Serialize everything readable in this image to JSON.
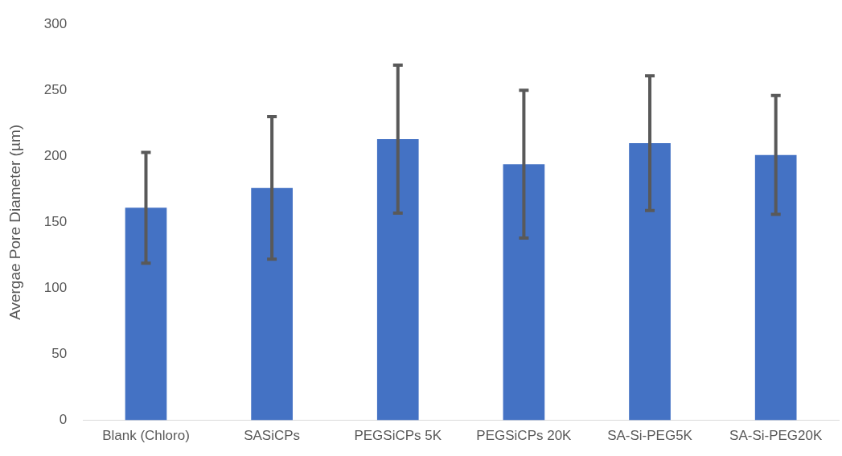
{
  "chart_data": {
    "type": "bar",
    "ylabel": "Avergae Pore Diameter (µm)",
    "categories": [
      "Blank (Chloro)",
      "SASiCPs",
      "PEGSiCPs 5K",
      "PEGSiCPs 20K",
      "SA-Si-PEG5K",
      "SA-Si-PEG20K"
    ],
    "values": [
      161,
      176,
      213,
      194,
      210,
      201
    ],
    "errors": [
      42,
      54,
      56,
      56,
      51,
      45
    ],
    "color": "#4472c4",
    "ylim": [
      0,
      300
    ],
    "yticks": [
      0,
      50,
      100,
      150,
      200,
      250,
      300
    ],
    "grid": false,
    "legend": false
  }
}
